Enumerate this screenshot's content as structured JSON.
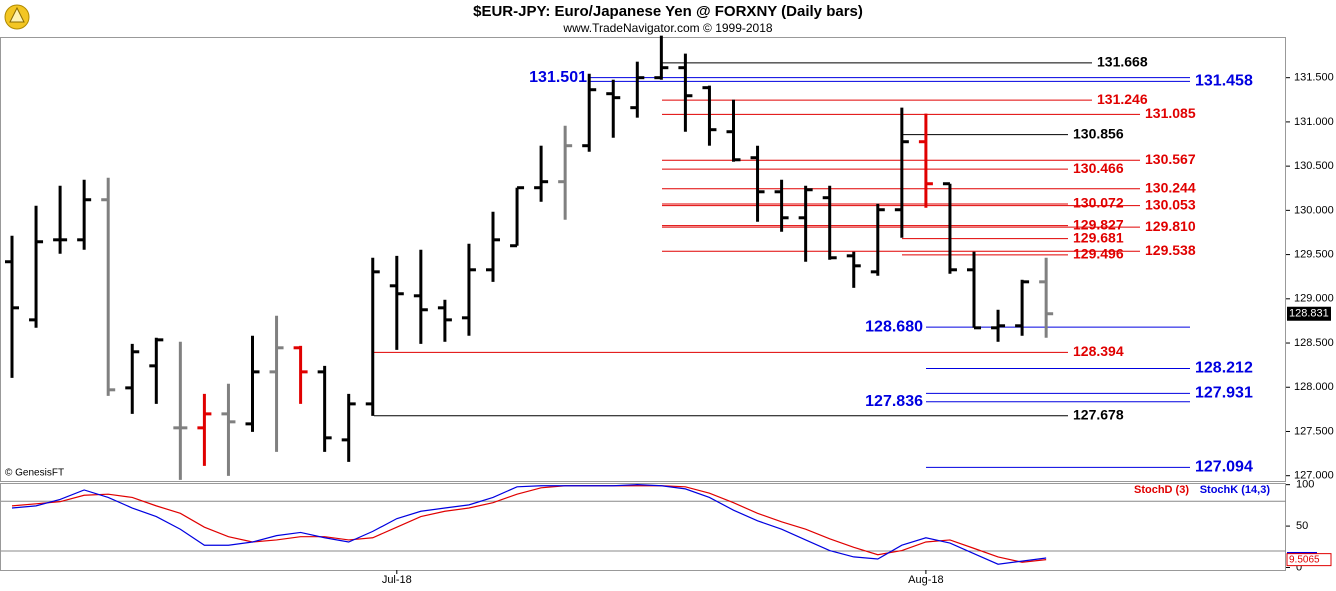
{
  "chart_data": [
    {
      "type": "ohlc",
      "title": "$EUR-JPY:  Euro/Japanese Yen @ FORXNY  (Daily bars)",
      "subtitle": "www.TradeNavigator.com © 1999-2018",
      "source": "© GenesisFT",
      "categories": [
        null,
        null,
        null,
        null,
        null,
        null,
        null,
        null,
        null,
        null,
        null,
        null,
        null,
        null,
        null,
        null,
        "Jul-18",
        null,
        null,
        null,
        null,
        null,
        null,
        null,
        null,
        null,
        null,
        null,
        null,
        null,
        null,
        null,
        null,
        null,
        null,
        null,
        null,
        null,
        "Aug-18",
        null,
        null,
        null,
        null,
        null
      ],
      "open": [
        129.419,
        128.762,
        129.667,
        129.667,
        130.12,
        127.993,
        128.242,
        127.541,
        127.541,
        127.699,
        127.586,
        128.174,
        128.446,
        128.174,
        127.405,
        127.812,
        129.147,
        129.034,
        128.898,
        128.785,
        129.328,
        129.6,
        130.256,
        130.324,
        130.731,
        131.319,
        131.161,
        131.5,
        131.613,
        131.387,
        130.889,
        130.595,
        130.21,
        129.916,
        130.143,
        129.486,
        129.305,
        130.007,
        130.776,
        130.301,
        129.328,
        128.672,
        128.695,
        129.192
      ],
      "high": [
        129.713,
        130.052,
        130.278,
        130.346,
        130.369,
        128.491,
        128.559,
        128.514,
        127.925,
        128.039,
        128.582,
        128.808,
        128.468,
        128.242,
        127.925,
        129.464,
        129.486,
        129.554,
        128.989,
        129.622,
        129.984,
        130.256,
        130.731,
        130.957,
        131.545,
        131.477,
        131.681,
        131.975,
        131.772,
        131.41,
        131.251,
        130.731,
        130.346,
        130.278,
        130.278,
        129.532,
        130.075,
        131.161,
        131.093,
        130.301,
        129.532,
        128.876,
        129.215,
        129.464
      ],
      "low": [
        128.106,
        128.672,
        129.509,
        129.554,
        127.903,
        127.699,
        127.812,
        126.953,
        127.111,
        126.998,
        127.496,
        127.269,
        127.812,
        127.269,
        127.156,
        127.677,
        128.423,
        128.491,
        128.514,
        128.582,
        129.192,
        129.6,
        130.097,
        129.894,
        130.663,
        130.821,
        131.048,
        131.477,
        130.889,
        130.731,
        130.55,
        129.871,
        129.758,
        129.419,
        129.441,
        129.124,
        129.26,
        129.69,
        130.029,
        129.283,
        128.672,
        128.514,
        128.582,
        128.559
      ],
      "close": [
        128.898,
        129.645,
        129.667,
        130.12,
        127.971,
        128.401,
        128.536,
        127.541,
        127.699,
        127.609,
        128.174,
        128.446,
        128.174,
        127.428,
        127.812,
        129.305,
        129.057,
        128.876,
        128.762,
        129.328,
        129.667,
        130.256,
        130.324,
        130.731,
        131.364,
        131.274,
        131.5,
        131.613,
        131.296,
        130.912,
        130.572,
        130.21,
        129.916,
        130.233,
        129.464,
        129.373,
        130.007,
        130.776,
        130.301,
        129.328,
        128.672,
        128.695,
        129.192,
        128.831
      ],
      "bar_colors": [
        "#000000",
        "#000000",
        "#000000",
        "#000000",
        "#808080",
        "#000000",
        "#000000",
        "#808080",
        "#e00000",
        "#808080",
        "#000000",
        "#808080",
        "#e00000",
        "#000000",
        "#000000",
        "#000000",
        "#000000",
        "#000000",
        "#000000",
        "#000000",
        "#000000",
        "#000000",
        "#000000",
        "#808080",
        "#000000",
        "#000000",
        "#000000",
        "#000000",
        "#000000",
        "#000000",
        "#000000",
        "#000000",
        "#000000",
        "#000000",
        "#000000",
        "#000000",
        "#000000",
        "#000000",
        "#e00000",
        "#000000",
        "#000000",
        "#000000",
        "#000000",
        "#808080"
      ],
      "ylim": [
        126.94,
        131.96
      ],
      "yticks": [
        {
          "value": 127,
          "label": "127.000"
        },
        {
          "value": 127.5,
          "label": "127.500"
        },
        {
          "value": 128,
          "label": "128.000"
        },
        {
          "value": 128.5,
          "label": "128.500"
        },
        {
          "value": 129,
          "label": "129.000"
        },
        {
          "value": 129.5,
          "label": "129.500"
        },
        {
          "value": 130,
          "label": "130.000"
        },
        {
          "value": 130.5,
          "label": "130.500"
        },
        {
          "value": 131,
          "label": "131.000"
        },
        {
          "value": 131.5,
          "label": "131.500"
        }
      ],
      "levels": [
        {
          "value": 131.668,
          "color": "#000000"
        },
        {
          "value": 131.501,
          "color": "#0000e0"
        },
        {
          "value": 131.458,
          "color": "#0000e0"
        },
        {
          "value": 131.246,
          "color": "#e00000"
        },
        {
          "value": 131.085,
          "color": "#e00000"
        },
        {
          "value": 130.856,
          "color": "#000000"
        },
        {
          "value": 130.567,
          "color": "#e00000"
        },
        {
          "value": 130.466,
          "color": "#e00000"
        },
        {
          "value": 130.244,
          "color": "#e00000"
        },
        {
          "value": 130.072,
          "color": "#e00000"
        },
        {
          "value": 130.053,
          "color": "#e00000"
        },
        {
          "value": 129.827,
          "color": "#e00000"
        },
        {
          "value": 129.81,
          "label": "129.810",
          "color": "#e00000"
        },
        {
          "value": 129.681,
          "color": "#e00000"
        },
        {
          "value": 129.538,
          "color": "#e00000"
        },
        {
          "value": 129.496,
          "color": "#e00000"
        },
        {
          "value": 128.68,
          "label": "128.680",
          "color": "#0000e0"
        },
        {
          "value": 128.394,
          "color": "#e00000"
        },
        {
          "value": 128.212,
          "color": "#0000e0"
        },
        {
          "value": 127.931,
          "color": "#0000e0"
        },
        {
          "value": 127.836,
          "color": "#0000e0"
        },
        {
          "value": 127.678,
          "color": "#000000"
        },
        {
          "value": 127.094,
          "color": "#0000e0"
        }
      ]
    },
    {
      "type": "line",
      "series": [
        {
          "name": "StochD (3)",
          "color": "#e00000",
          "values": [
            74.4,
            76.9,
            79.5,
            87.2,
            88.5,
            84.6,
            74.4,
            65.4,
            48.7,
            37.2,
            30.8,
            33.3,
            37.2,
            37.2,
            33.3,
            35.9,
            48.7,
            61.5,
            67.9,
            71.8,
            78.2,
            88.5,
            96.2,
            98.7,
            98.7,
            98.7,
            98.7,
            98.7,
            97.4,
            89.7,
            78.2,
            65.4,
            55.1,
            46.2,
            34.6,
            24.4,
            15.4,
            20.5,
            30.8,
            33.3,
            23.1,
            12.8,
            6.4,
            9.5065
          ]
        },
        {
          "name": "StochK (14,3)",
          "color": "#0000e0",
          "values": [
            71.8,
            74.4,
            82.1,
            93.6,
            84.6,
            71.8,
            61.5,
            46.2,
            26.9,
            26.9,
            30.8,
            38.5,
            42.3,
            35.9,
            30.8,
            43.6,
            59,
            67.9,
            71.8,
            75.6,
            84.6,
            97.4,
            98.7,
            98.7,
            98.7,
            98.7,
            100,
            98.7,
            94.9,
            84.6,
            69.2,
            56.4,
            46.2,
            33.3,
            20.5,
            12.8,
            10.3,
            26.9,
            35.9,
            29.5,
            16.7,
            4.0,
            7.7,
            11.5
          ]
        }
      ],
      "ylim": [
        -3,
        102
      ],
      "yticks": [
        0,
        50,
        100
      ],
      "ref_lines": [
        20,
        80
      ]
    }
  ]
}
